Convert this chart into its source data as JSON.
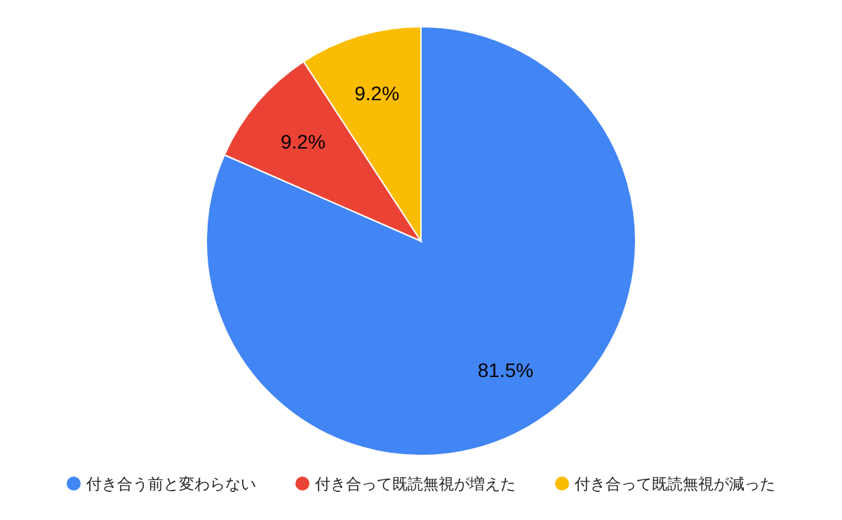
{
  "chart_data": {
    "type": "pie",
    "categories": [
      "付き合う前と変わらない",
      "付き合って既読無視が増えた",
      "付き合って既読無視が減った"
    ],
    "values": [
      81.5,
      9.2,
      9.2
    ],
    "colors": [
      "#4285f4",
      "#ea4335",
      "#fbbc04"
    ],
    "value_labels": [
      "81.5%",
      "9.2%",
      "9.2%"
    ],
    "legend": "bottom"
  }
}
